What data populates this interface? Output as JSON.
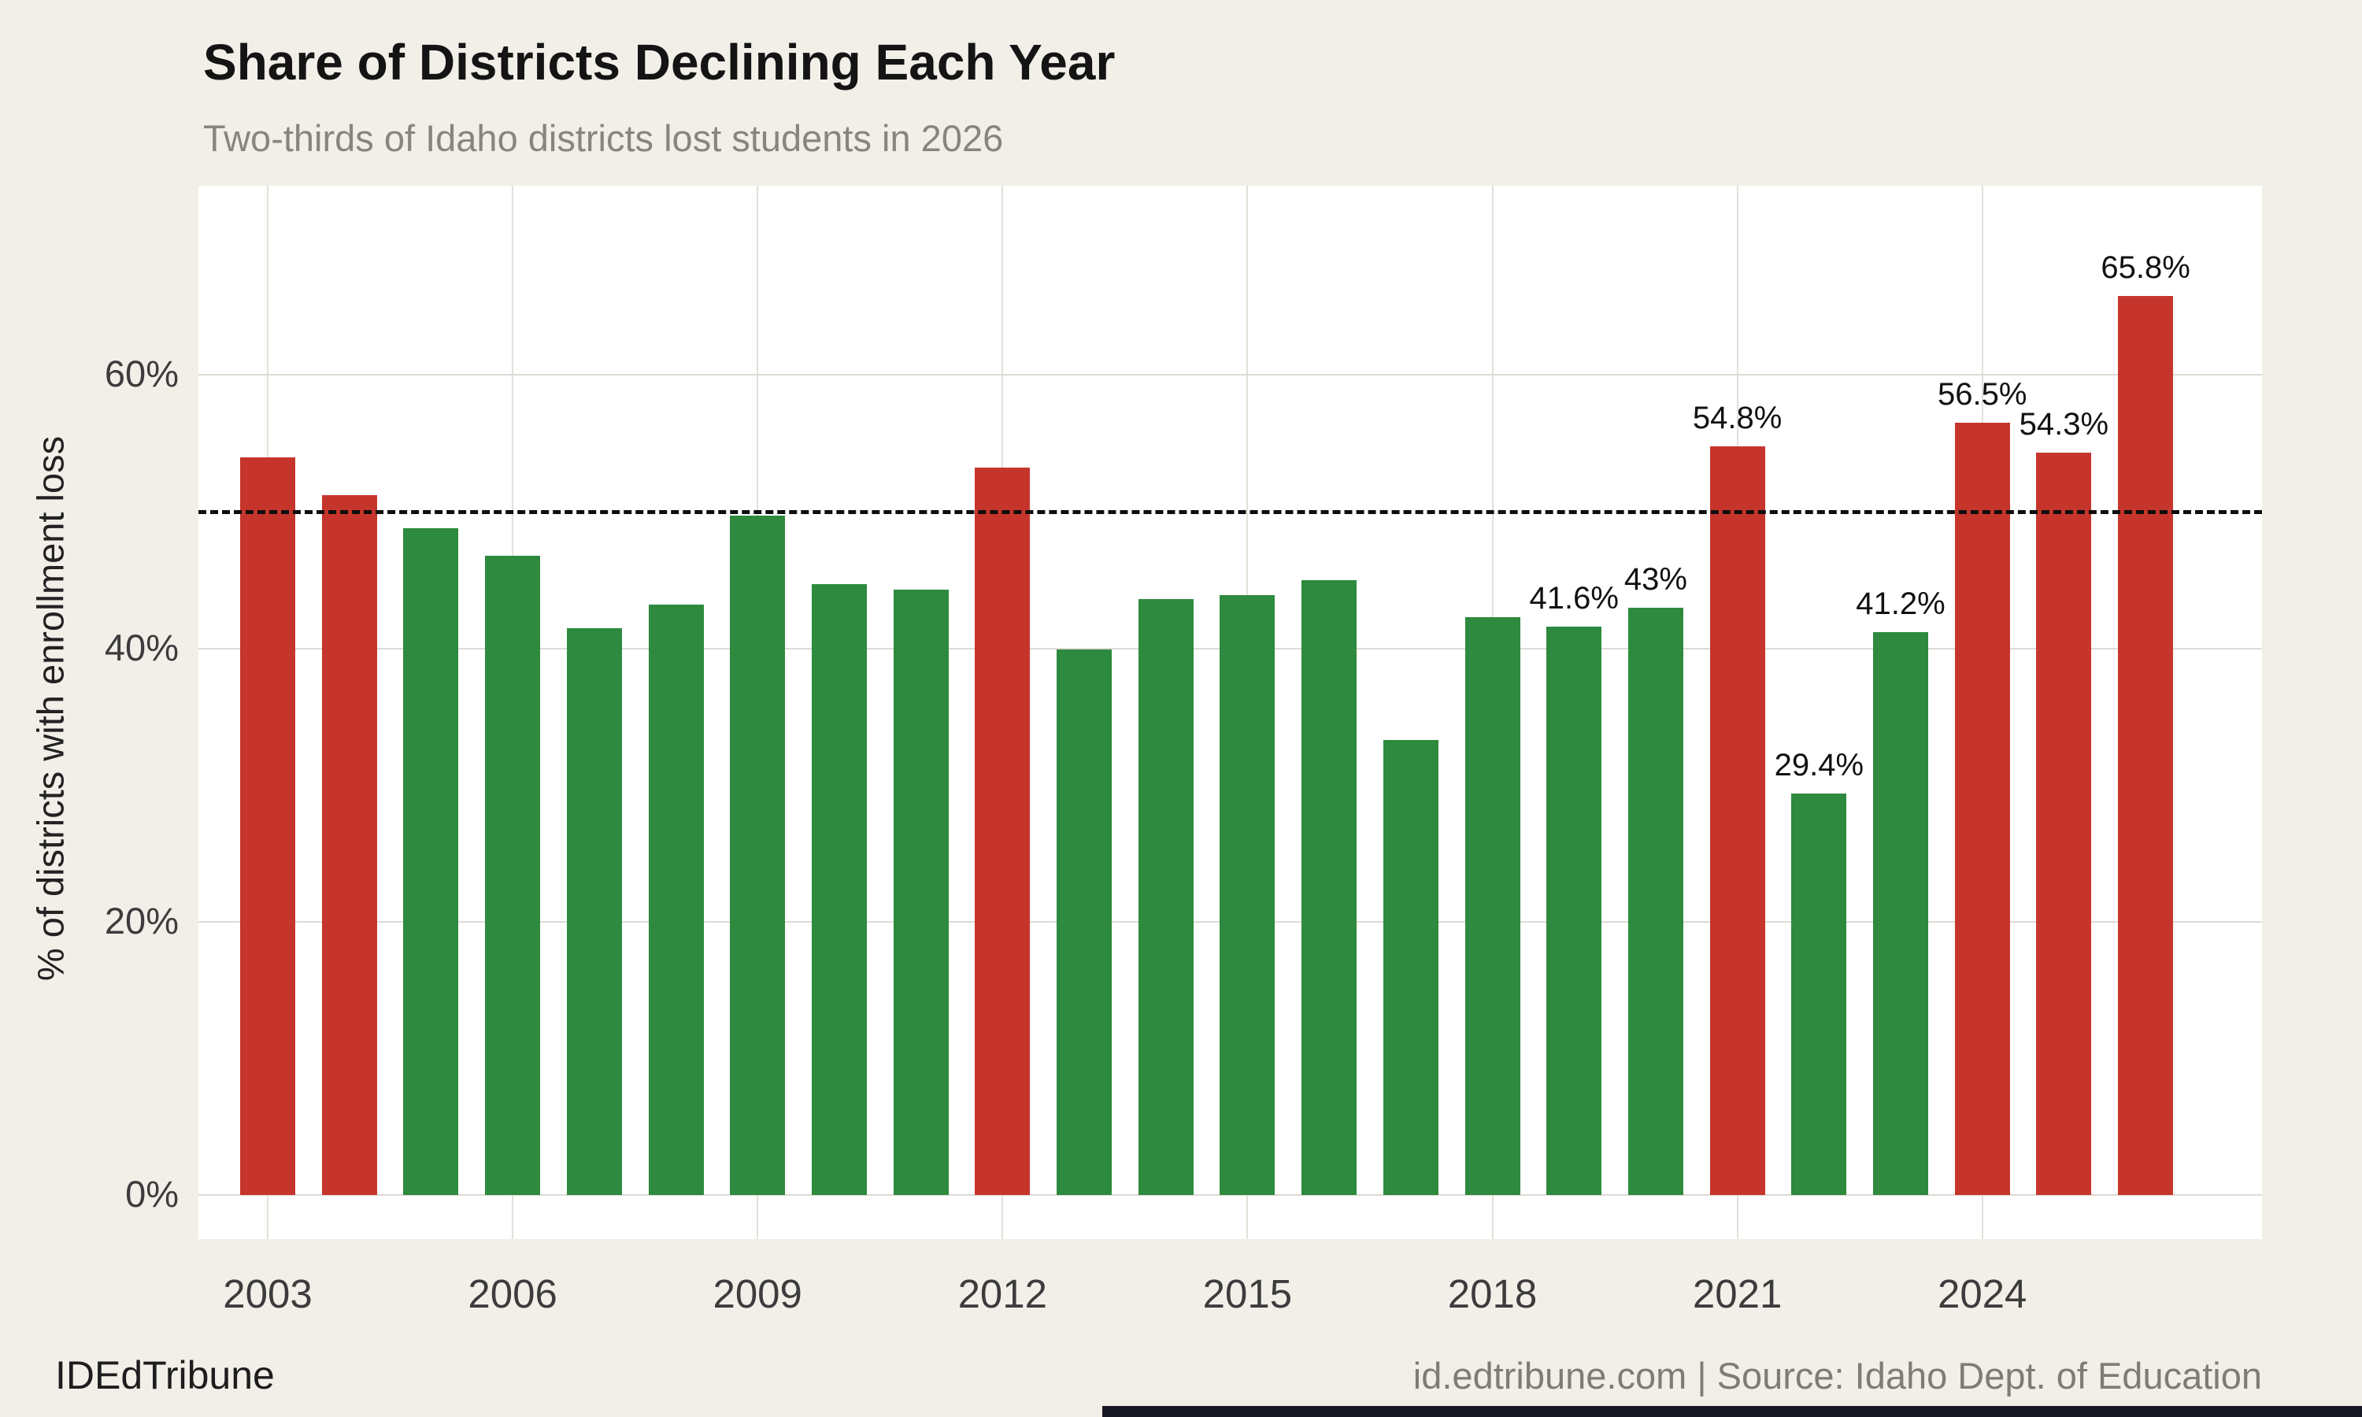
{
  "header": {
    "title": "Share of Districts Declining Each Year",
    "subtitle": "Two-thirds of Idaho districts lost students in 2026"
  },
  "footer": {
    "brand": "IDEdTribune",
    "attribution": "id.edtribune.com | Source: Idaho Dept. of Education"
  },
  "colors": {
    "above_threshold_bar": "#c6352c",
    "below_threshold_bar": "#2d8a3e",
    "background": "#f2efe8",
    "panel": "#ffffff",
    "gridline": "#dedad3",
    "reference_line": "#0e0e0e"
  },
  "chart_data": {
    "type": "bar",
    "title": "Share of Districts Declining Each Year",
    "subtitle": "Two-thirds of Idaho districts lost students in 2026",
    "xlabel": "",
    "ylabel": "% of districts with enrollment loss",
    "categories": [
      2003,
      2004,
      2005,
      2006,
      2007,
      2008,
      2009,
      2010,
      2011,
      2012,
      2013,
      2014,
      2015,
      2016,
      2017,
      2018,
      2019,
      2020,
      2021,
      2022,
      2023,
      2024,
      2025,
      2026
    ],
    "values": [
      54.0,
      51.2,
      48.8,
      46.8,
      41.5,
      43.2,
      49.7,
      44.7,
      44.3,
      53.2,
      39.9,
      43.6,
      43.9,
      45.0,
      33.3,
      42.3,
      41.6,
      43.0,
      54.8,
      29.4,
      41.2,
      56.5,
      54.3,
      65.8
    ],
    "bar_labels": [
      "",
      "",
      "",
      "",
      "",
      "",
      "",
      "",
      "",
      "",
      "",
      "",
      "",
      "",
      "",
      "",
      "41.6%",
      "43%",
      "54.8%",
      "29.4%",
      "41.2%",
      "56.5%",
      "54.3%",
      "65.8%"
    ],
    "color_rule": "red if value above 50 else green",
    "threshold": 50,
    "reference_line": 50,
    "yticks": [
      0,
      20,
      40,
      60
    ],
    "ytick_labels": [
      "0%",
      "20%",
      "40%",
      "60%"
    ],
    "xticks": [
      2003,
      2006,
      2009,
      2012,
      2015,
      2018,
      2021,
      2024
    ],
    "ylim": [
      0,
      73.8
    ],
    "grid": true,
    "legend_position": "none"
  }
}
